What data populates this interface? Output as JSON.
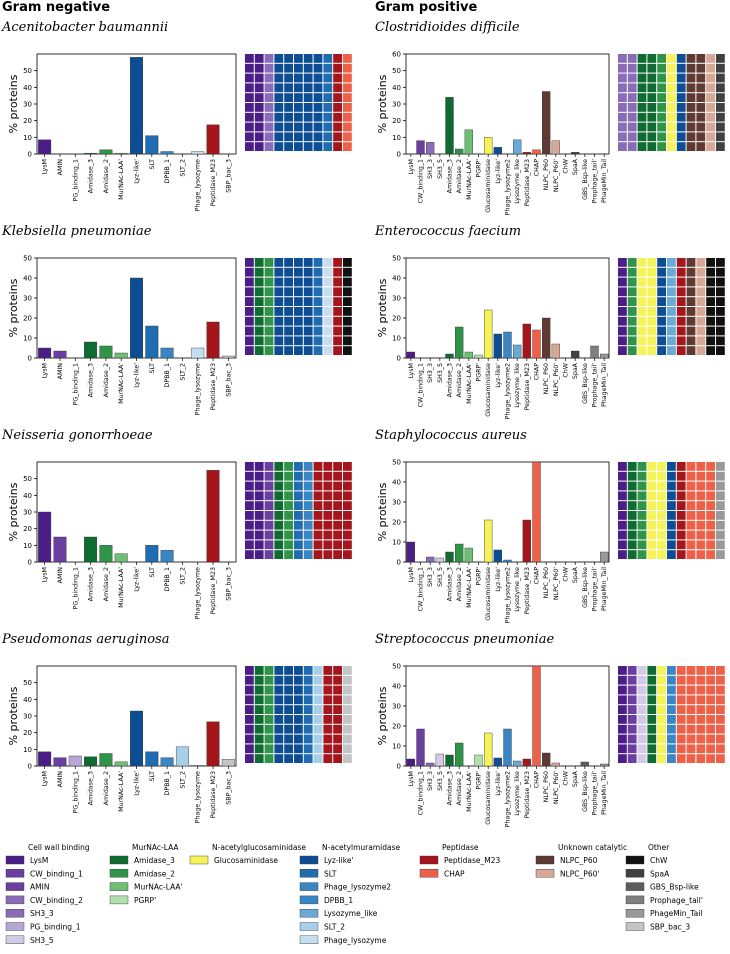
{
  "headers": {
    "gram_negative": "Gram negative",
    "gram_positive": "Gram positive"
  },
  "ylabel": "% proteins",
  "categories_neg": [
    "LysM",
    "AMIN",
    "PG_binding_1",
    "Amidase_3",
    "Amidase_2",
    "MurNAc-LAA'",
    "Lyz-like'",
    "SLT",
    "DPBB_1",
    "SLT_2",
    "Phage_lysozyme",
    "Peptidase_M23",
    "SBP_bac_3"
  ],
  "categories_pos": [
    "LysM",
    "CW_binding_1",
    "SH3_3",
    "SH3_5",
    "Amidase_3",
    "Amidase_2",
    "MurNAc-LAA'",
    "PGRP'",
    "Glucosaminidase",
    "Lyz-like'",
    "Phage_lysozyme2",
    "Lysozyme_like",
    "Peptidase_M23",
    "CHAP",
    "NLPC_P60",
    "NLPC_P60'",
    "ChW",
    "SpaA",
    "GBS_Bsp-like",
    "Prophage_tail'",
    "PhageMin_Tail"
  ],
  "colors": {
    "LysM": "#4b1d86",
    "CW_binding_1": "#6a3fa0",
    "AMIN": "#6a3fa0",
    "CW_binding_2": "#8a6bb8",
    "SH3_3": "#8a6bb8",
    "PG_binding_1": "#b7a6d6",
    "SH3_5": "#d3cae6",
    "Amidase_3": "#0f6b32",
    "Amidase_2": "#2f9448",
    "MurNAc-LAA'": "#6cbf73",
    "PGRP'": "#b2dfae",
    "Glucosaminidase": "#f5f25a",
    "Lyz-like'": "#0d4d94",
    "SLT": "#1f6cb0",
    "Phage_lysozyme2": "#3a86c4",
    "DPBB_1": "#3a86c4",
    "Lysozyme_like": "#6aaad8",
    "SLT_2": "#a8cfea",
    "Phage_lysozyme": "#c7def0",
    "Peptidase_M23": "#a5151c",
    "CHAP": "#ee6149",
    "NLPC_P60": "#5e3a33",
    "NLPC_P60'": "#d7a896",
    "ChW": "#111111",
    "SpaA": "#404040",
    "GBS_Bsp-like": "#5c5c5c",
    "Prophage_tail'": "#7f7f7f",
    "PhageMin_Tail": "#999999",
    "SBP_bac_3": "#c4c4c4"
  },
  "chart_data": [
    {
      "type": "bar",
      "title": "Acenitobacter baumannii",
      "group": "neg",
      "ylim": [
        0,
        60
      ],
      "yticks": [
        0,
        10,
        20,
        30,
        40,
        50
      ],
      "values": [
        8.5,
        0,
        0,
        0.5,
        2.5,
        0.5,
        58,
        11,
        1.5,
        0,
        1.5,
        17.5,
        0
      ],
      "waffle_cols": [
        "LysM",
        "LysM",
        "CW_binding_2",
        "Lyz-like'",
        "Lyz-like'",
        "Lyz-like'",
        "Lyz-like'",
        "Lyz-like'",
        "SLT",
        "Peptidase_M23",
        "CHAP"
      ]
    },
    {
      "type": "bar",
      "title": "Klebsiella pneumoniae",
      "group": "neg",
      "ylim": [
        0,
        50
      ],
      "yticks": [
        0,
        10,
        20,
        30,
        40,
        50
      ],
      "values": [
        5,
        3.5,
        0,
        8,
        6,
        2.5,
        40,
        16,
        5,
        0,
        5,
        18,
        1
      ],
      "waffle_cols": [
        "LysM",
        "Amidase_3",
        "Amidase_2",
        "Lyz-like'",
        "Lyz-like'",
        "Lyz-like'",
        "Lyz-like'",
        "SLT",
        "Phage_lysozyme",
        "Peptidase_M23",
        "ChW"
      ]
    },
    {
      "type": "bar",
      "title": "Neisseria gonorrhoeae",
      "group": "neg",
      "ylim": [
        0,
        60
      ],
      "yticks": [
        0,
        10,
        20,
        30,
        40,
        50
      ],
      "values": [
        30,
        15,
        0,
        15,
        10,
        5,
        0,
        10,
        7,
        0,
        0,
        55,
        0
      ],
      "waffle_cols": [
        "LysM",
        "LysM",
        "AMIN",
        "Amidase_3",
        "Amidase_2",
        "SLT",
        "DPBB_1",
        "Peptidase_M23",
        "Peptidase_M23",
        "Peptidase_M23",
        "Peptidase_M23"
      ]
    },
    {
      "type": "bar",
      "title": "Pseudomonas aeruginosa",
      "group": "neg",
      "ylim": [
        0,
        60
      ],
      "yticks": [
        0,
        10,
        20,
        30,
        40,
        50
      ],
      "values": [
        8.5,
        5,
        6,
        5.5,
        7.5,
        2.5,
        33,
        8.5,
        5,
        11.5,
        0.5,
        26.5,
        4
      ],
      "waffle_cols": [
        "LysM",
        "Amidase_3",
        "Amidase_2",
        "Lyz-like'",
        "Lyz-like'",
        "Lyz-like'",
        "SLT",
        "SLT_2",
        "Peptidase_M23",
        "Peptidase_M23",
        "SBP_bac_3"
      ]
    },
    {
      "type": "bar",
      "title": "Clostridioides difficile",
      "group": "pos",
      "ylim": [
        0,
        60
      ],
      "yticks": [
        0,
        10,
        20,
        30,
        40,
        50,
        60
      ],
      "values": [
        0,
        8,
        7,
        0,
        34,
        3,
        14.5,
        0,
        10,
        4,
        0,
        8.5,
        1,
        2.5,
        37.5,
        8,
        0,
        1,
        0,
        0,
        0
      ],
      "waffle_cols": [
        "SH3_3",
        "SH3_3",
        "Amidase_3",
        "Amidase_3",
        "Amidase_2",
        "Glucosaminidase",
        "Lyz-like'",
        "NLPC_P60",
        "NLPC_P60",
        "NLPC_P60'",
        "SpaA"
      ]
    },
    {
      "type": "bar",
      "title": "Enterococcus faecium",
      "group": "pos",
      "ylim": [
        0,
        50
      ],
      "yticks": [
        0,
        10,
        20,
        30,
        40,
        50
      ],
      "values": [
        3,
        0,
        0,
        0,
        2,
        15.5,
        3,
        1.5,
        24,
        12,
        13,
        6.5,
        17,
        14,
        20,
        7,
        0,
        3.5,
        0,
        6,
        2
      ],
      "waffle_cols": [
        "LysM",
        "Amidase_2",
        "Glucosaminidase",
        "Glucosaminidase",
        "Lyz-like'",
        "Lysozyme_like",
        "Peptidase_M23",
        "NLPC_P60",
        "NLPC_P60'",
        "ChW",
        "ChW"
      ]
    },
    {
      "type": "bar",
      "title": "Staphylococcus aureus",
      "group": "pos",
      "ylim": [
        0,
        50
      ],
      "yticks": [
        0,
        10,
        20,
        30,
        40,
        50
      ],
      "values": [
        10,
        0,
        2.5,
        2,
        5,
        9,
        7,
        0,
        21,
        6,
        1,
        0,
        21,
        50,
        0,
        0,
        0,
        0,
        0,
        0,
        5
      ],
      "waffle_cols": [
        "LysM",
        "Amidase_3",
        "Amidase_2",
        "Glucosaminidase",
        "Glucosaminidase",
        "Lyz-like'",
        "Peptidase_M23",
        "CHAP",
        "CHAP",
        "CHAP",
        "PhageMin_Tail"
      ]
    },
    {
      "type": "bar",
      "title": "Streptococcus pneumoniae",
      "group": "pos",
      "ylim": [
        0,
        50
      ],
      "yticks": [
        0,
        10,
        20,
        30,
        40,
        50
      ],
      "values": [
        3.5,
        18.5,
        1.5,
        6,
        5.5,
        11.5,
        0,
        5.5,
        16.5,
        4,
        18.5,
        2.5,
        3.5,
        52,
        6.5,
        1.5,
        0,
        0,
        2,
        0,
        1
      ],
      "waffle_cols": [
        "LysM",
        "CW_binding_1",
        "SH3_5",
        "Amidase_3",
        "Glucosaminidase",
        "Phage_lysozyme2",
        "CHAP",
        "CHAP",
        "CHAP",
        "CHAP",
        "CHAP"
      ]
    }
  ],
  "legend": [
    {
      "title": "Cell wall binding",
      "items": [
        "LysM",
        "CW_binding_1",
        "AMIN",
        "CW_binding_2",
        "SH3_3",
        "PG_binding_1",
        "SH3_5"
      ]
    },
    {
      "title": "MurNAc-LAA",
      "items": [
        "Amidase_3",
        "Amidase_2",
        "MurNAc-LAA'",
        "PGRP'"
      ]
    },
    {
      "title": "N-acetylglucosaminidase",
      "items": [
        "Glucosaminidase"
      ]
    },
    {
      "title": "N-acetylmuramidase",
      "items": [
        "Lyz-like'",
        "SLT",
        "Phage_lysozyme2",
        "DPBB_1",
        "Lysozyme_like",
        "SLT_2",
        "Phage_lysozyme"
      ]
    },
    {
      "title": "Peptidase",
      "items": [
        "Peptidase_M23",
        "CHAP"
      ]
    },
    {
      "title": "Unknown catalytic",
      "items": [
        "NLPC_P60",
        "NLPC_P60'"
      ]
    },
    {
      "title": "Other",
      "items": [
        "ChW",
        "SpaA",
        "GBS_Bsp-like",
        "Prophage_tail'",
        "PhageMin_Tail",
        "SBP_bac_3"
      ]
    }
  ]
}
